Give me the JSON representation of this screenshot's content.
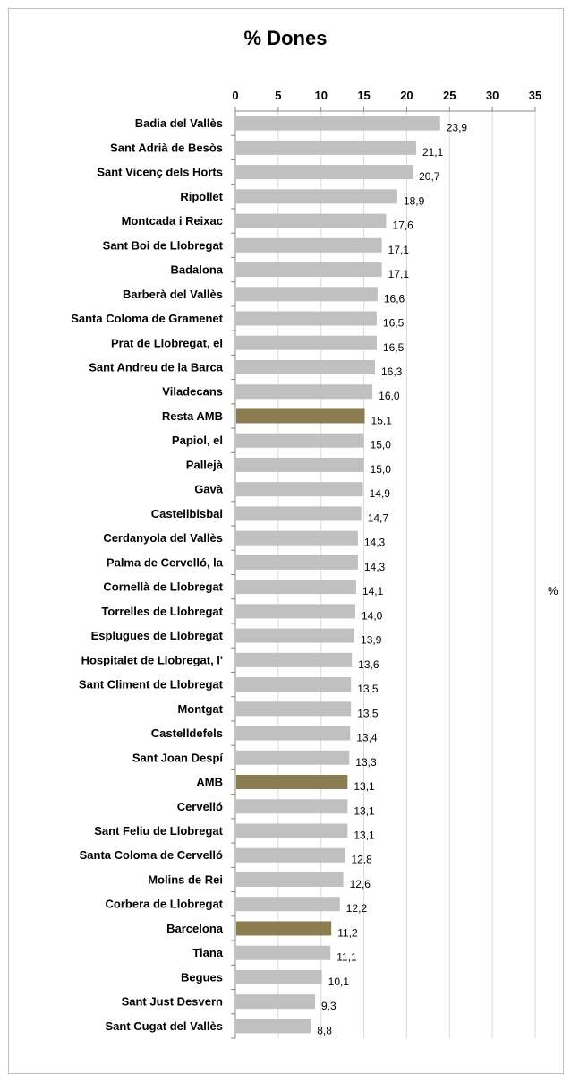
{
  "chart_data": {
    "type": "bar",
    "orientation": "horizontal",
    "title": "% Dones",
    "unit_label": "%",
    "xlim": [
      0,
      35
    ],
    "ticks": [
      "0",
      "5",
      "10",
      "15",
      "20",
      "25",
      "30",
      "35"
    ],
    "tick_values": [
      0,
      5,
      10,
      15,
      20,
      25,
      30,
      35
    ],
    "grid": true,
    "colors": {
      "default": "#c0c0c0",
      "highlight": "#8b7d4f"
    },
    "categories": [
      "Badia del Vallès",
      "Sant Adrià de Besòs",
      "Sant Vicenç dels Horts",
      "Ripollet",
      "Montcada i Reixac",
      "Sant Boi de Llobregat",
      "Badalona",
      "Barberà del Vallès",
      "Santa Coloma de Gramenet",
      "Prat de Llobregat, el",
      "Sant Andreu de la Barca",
      "Viladecans",
      "Resta AMB",
      "Papiol, el",
      "Pallejà",
      "Gavà",
      "Castellbisbal",
      "Cerdanyola del Vallès",
      "Palma de Cervelló, la",
      "Cornellà de Llobregat",
      "Torrelles de Llobregat",
      "Esplugues de Llobregat",
      "Hospitalet de Llobregat, l'",
      "Sant Climent de Llobregat",
      "Montgat",
      "Castelldefels",
      "Sant Joan Despí",
      "AMB",
      "Cervelló",
      "Sant Feliu de Llobregat",
      "Santa Coloma de Cervelló",
      "Molins de Rei",
      "Corbera de Llobregat",
      "Barcelona",
      "Tiana",
      "Begues",
      "Sant Just Desvern",
      "Sant Cugat del Vallès"
    ],
    "values": [
      23.9,
      21.1,
      20.7,
      18.9,
      17.6,
      17.1,
      17.1,
      16.6,
      16.5,
      16.5,
      16.3,
      16.0,
      15.1,
      15.0,
      15.0,
      14.9,
      14.7,
      14.3,
      14.3,
      14.1,
      14.0,
      13.9,
      13.6,
      13.5,
      13.5,
      13.4,
      13.3,
      13.1,
      13.1,
      13.1,
      12.8,
      12.6,
      12.2,
      11.2,
      11.1,
      10.1,
      9.3,
      8.8
    ],
    "labels": [
      "23,9",
      "21,1",
      "20,7",
      "18,9",
      "17,6",
      "17,1",
      "17,1",
      "16,6",
      "16,5",
      "16,5",
      "16,3",
      "16,0",
      "15,1",
      "15,0",
      "15,0",
      "14,9",
      "14,7",
      "14,3",
      "14,3",
      "14,1",
      "14,0",
      "13,9",
      "13,6",
      "13,5",
      "13,5",
      "13,4",
      "13,3",
      "13,1",
      "13,1",
      "13,1",
      "12,8",
      "12,6",
      "12,2",
      "11,2",
      "11,1",
      "10,1",
      "9,3",
      "8,8"
    ],
    "highlighted": [
      "Resta AMB",
      "AMB",
      "Barcelona"
    ]
  }
}
